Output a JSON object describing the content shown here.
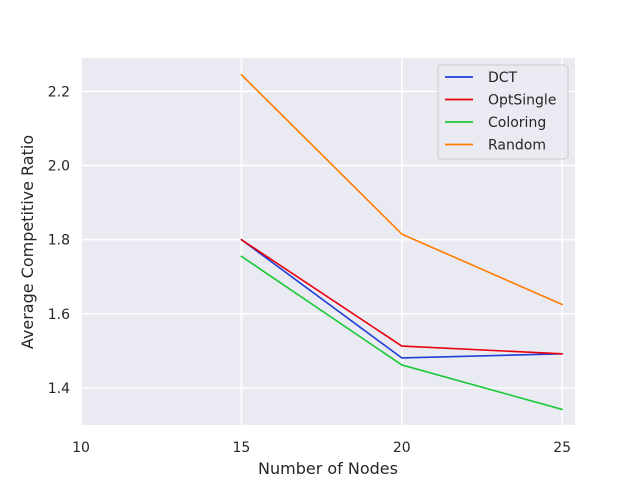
{
  "chart_data": {
    "type": "line",
    "title": "",
    "xlabel": "Number of Nodes",
    "ylabel": "Average Competitive Ratio",
    "x": [
      15,
      20,
      25
    ],
    "xlim": [
      10,
      25.4
    ],
    "ylim": [
      1.3,
      2.29
    ],
    "xticks": [
      10,
      15,
      20,
      25
    ],
    "yticks": [
      1.4,
      1.6,
      1.8,
      2.0,
      2.2
    ],
    "xtick_labels": [
      "10",
      "15",
      "20",
      "25"
    ],
    "ytick_labels": [
      "1.4",
      "1.6",
      "1.8",
      "2.0",
      "2.2"
    ],
    "grid": true,
    "legend_position": "top-right",
    "series": [
      {
        "name": "DCT",
        "color": "#1f3fd6",
        "values": [
          1.8,
          1.481,
          1.492
        ]
      },
      {
        "name": "OptSingle",
        "color": "#e8000b",
        "values": [
          1.8,
          1.513,
          1.492
        ]
      },
      {
        "name": "Coloring",
        "color": "#1ac938",
        "values": [
          1.755,
          1.462,
          1.342
        ]
      },
      {
        "name": "Random",
        "color": "#ff7c00",
        "values": [
          2.245,
          1.815,
          1.625
        ]
      }
    ]
  }
}
